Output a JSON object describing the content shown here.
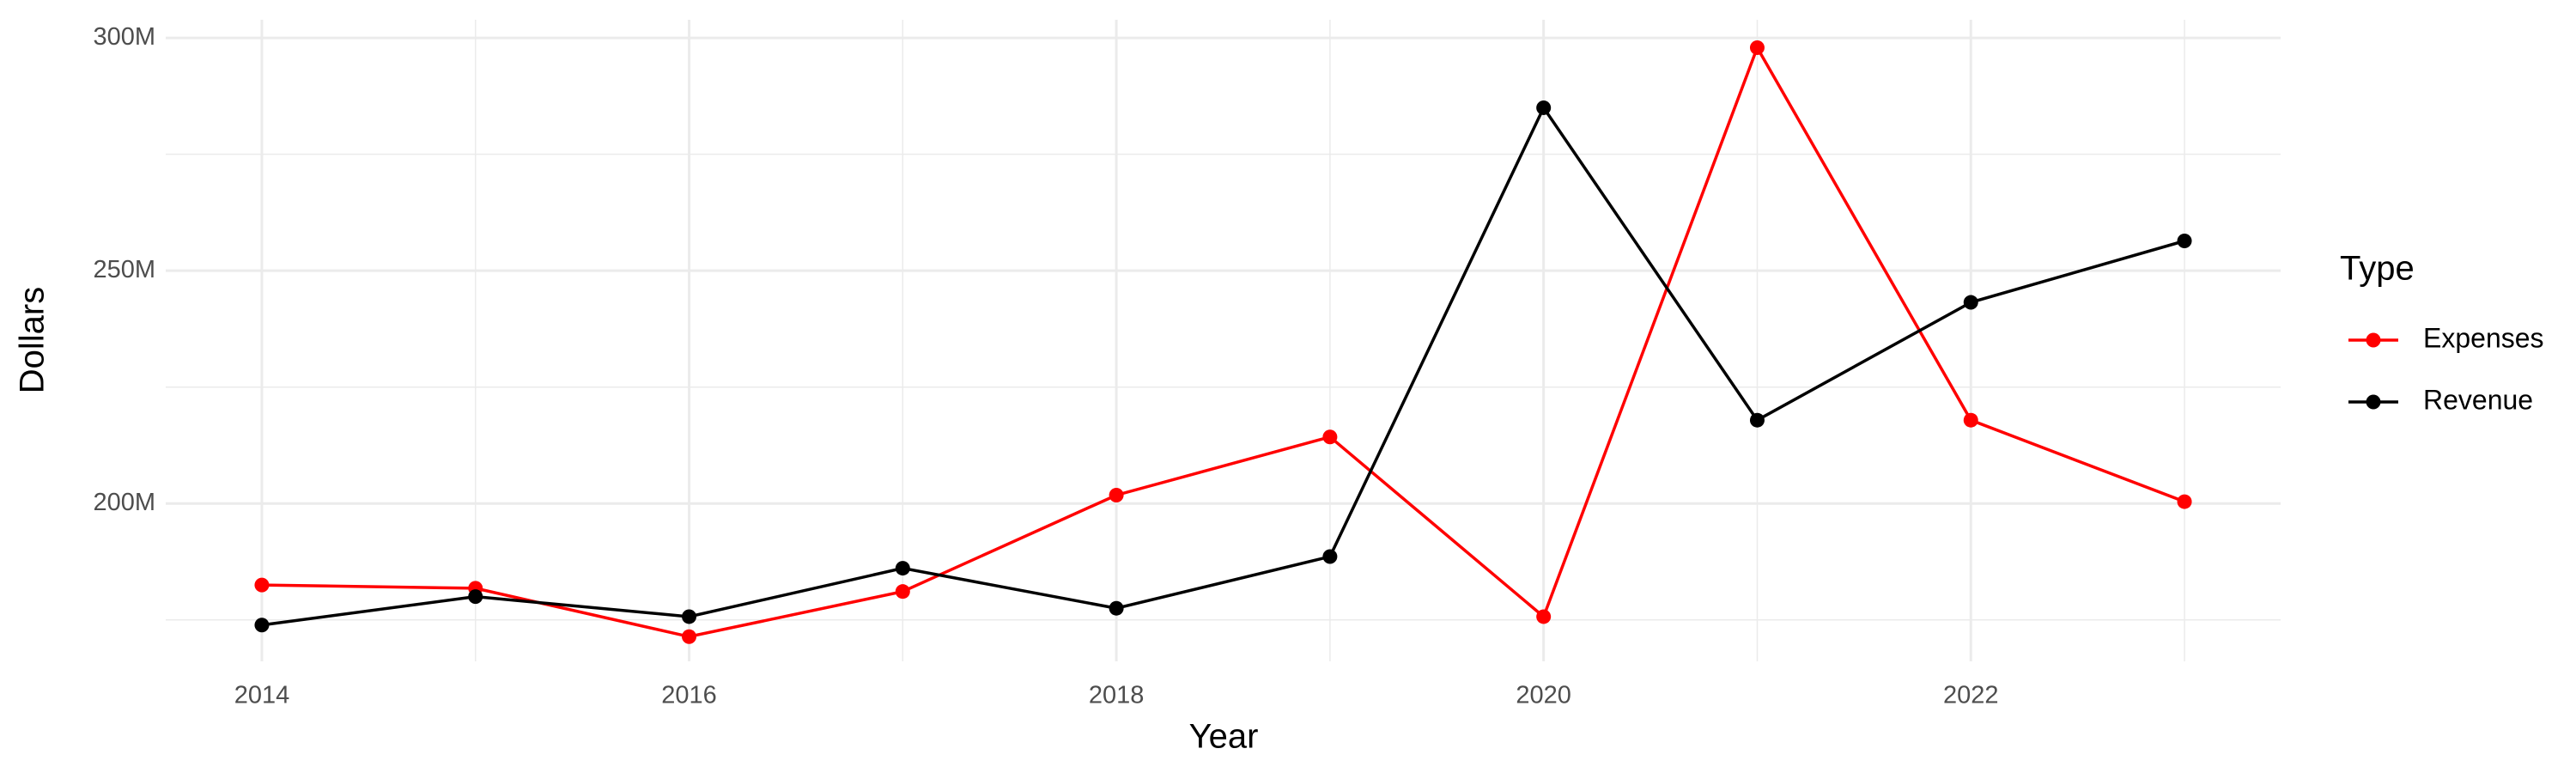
{
  "chart_data": {
    "type": "line",
    "x_label": "Year",
    "y_label": "Dollars",
    "legend_title": "Type",
    "legend_position": "right",
    "grid": true,
    "x": [
      2014,
      2015,
      2016,
      2017,
      2018,
      2019,
      2020,
      2021,
      2022,
      2023
    ],
    "series": [
      {
        "name": "Expenses",
        "color": "#ff0000",
        "values": [
          182500000,
          181800000,
          171400000,
          181100000,
          201800000,
          214300000,
          175700000,
          297900000,
          217900000,
          200400000
        ]
      },
      {
        "name": "Revenue",
        "color": "#000000",
        "values": [
          173900000,
          180000000,
          175700000,
          186100000,
          177500000,
          188600000,
          285000000,
          217900000,
          243200000,
          256400000
        ]
      }
    ],
    "xlim": [
      2013.55,
      2023.45
    ],
    "xticks": [
      2014,
      2016,
      2018,
      2020,
      2022
    ],
    "ylim": [
      166100000,
      303900000
    ],
    "yticks": [
      {
        "value": 200000000,
        "label": "200M"
      },
      {
        "value": 250000000,
        "label": "250M"
      },
      {
        "value": 300000000,
        "label": "300M"
      }
    ]
  }
}
